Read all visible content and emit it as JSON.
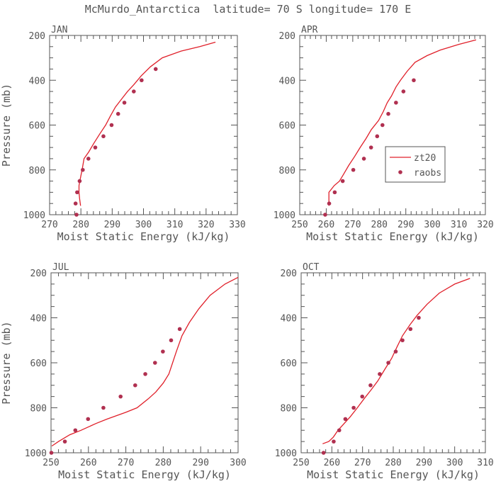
{
  "figure_title": "McMurdo_Antarctica  latitude= 70 S longitude= 170 E",
  "colors": {
    "model_line": "#e0202a",
    "obs_marker": "#b03050",
    "axis": "#555555"
  },
  "chart_data": [
    {
      "type": "line",
      "panel_label": "JAN",
      "xlabel": "Moist Static Energy (kJ/kg)",
      "ylabel": "Pressure (mb)",
      "xlim": [
        270,
        330
      ],
      "ylim": [
        1000,
        200
      ],
      "x_ticks": [
        270,
        280,
        290,
        300,
        310,
        320,
        330
      ],
      "y_ticks": [
        200,
        400,
        600,
        800,
        1000
      ],
      "legend": null,
      "series": [
        {
          "name": "zt20",
          "kind": "line",
          "points": [
            [
              279.9,
              960
            ],
            [
              279.6,
              930
            ],
            [
              279.4,
              900
            ],
            [
              279.4,
              870
            ],
            [
              279.8,
              840
            ],
            [
              280.5,
              790
            ],
            [
              281,
              750
            ],
            [
              282.5,
              720
            ],
            [
              284.2,
              680
            ],
            [
              286,
              640
            ],
            [
              287.9,
              600
            ],
            [
              289.4,
              560
            ],
            [
              291,
              520
            ],
            [
              293.2,
              480
            ],
            [
              294.9,
              450
            ],
            [
              296.9,
              420
            ],
            [
              299.3,
              380
            ],
            [
              302.2,
              340
            ],
            [
              306,
              300
            ],
            [
              312,
              270
            ],
            [
              318,
              250
            ],
            [
              323,
              230
            ]
          ]
        },
        {
          "name": "raobs",
          "kind": "scatter",
          "points": [
            [
              278.6,
              1000
            ],
            [
              278.3,
              950
            ],
            [
              278.8,
              900
            ],
            [
              279.6,
              850
            ],
            [
              280.6,
              800
            ],
            [
              282.4,
              750
            ],
            [
              284.6,
              700
            ],
            [
              287.2,
              650
            ],
            [
              289.8,
              600
            ],
            [
              291.9,
              550
            ],
            [
              293.9,
              500
            ],
            [
              296.9,
              450
            ],
            [
              299.4,
              400
            ],
            [
              303.9,
              350
            ]
          ]
        }
      ]
    },
    {
      "type": "line",
      "panel_label": "APR",
      "xlabel": "Moist Static Energy (kJ/kg)",
      "ylabel": "",
      "xlim": [
        250,
        320
      ],
      "ylim": [
        1000,
        200
      ],
      "x_ticks": [
        250,
        260,
        270,
        280,
        290,
        300,
        310,
        320
      ],
      "y_ticks": [
        200,
        400,
        600,
        800,
        1000
      ],
      "legend": {
        "position": "right",
        "entries": [
          "zt20",
          "raobs"
        ]
      },
      "series": [
        {
          "name": "zt20",
          "kind": "line",
          "points": [
            [
              261,
              960
            ],
            [
              261,
              900
            ],
            [
              263,
              870
            ],
            [
              265,
              850
            ],
            [
              266.5,
              820
            ],
            [
              268.5,
              780
            ],
            [
              270.7,
              740
            ],
            [
              272.8,
              700
            ],
            [
              275,
              660
            ],
            [
              277,
              620
            ],
            [
              279.7,
              580
            ],
            [
              281.5,
              540
            ],
            [
              283,
              500
            ],
            [
              284.6,
              470
            ],
            [
              286.3,
              430
            ],
            [
              288,
              400
            ],
            [
              290.5,
              360
            ],
            [
              293.5,
              320
            ],
            [
              298,
              290
            ],
            [
              303,
              265
            ],
            [
              310,
              240
            ],
            [
              316.5,
              220
            ]
          ]
        },
        {
          "name": "raobs",
          "kind": "scatter",
          "points": [
            [
              259.6,
              1000
            ],
            [
              261.1,
              950
            ],
            [
              263.2,
              900
            ],
            [
              266.2,
              850
            ],
            [
              270.2,
              800
            ],
            [
              274.2,
              750
            ],
            [
              276.9,
              700
            ],
            [
              279.2,
              650
            ],
            [
              281.2,
              600
            ],
            [
              283.4,
              550
            ],
            [
              286.3,
              500
            ],
            [
              289.1,
              450
            ],
            [
              293,
              400
            ]
          ]
        }
      ]
    },
    {
      "type": "line",
      "panel_label": "JUL",
      "xlabel": "Moist Static Energy (kJ/kg)",
      "ylabel": "Pressure (mb)",
      "xlim": [
        250,
        300
      ],
      "ylim": [
        1000,
        200
      ],
      "x_ticks": [
        250,
        260,
        270,
        280,
        290,
        300
      ],
      "y_ticks": [
        200,
        400,
        600,
        800,
        1000
      ],
      "legend": null,
      "series": [
        {
          "name": "zt20",
          "kind": "line",
          "points": [
            [
              250.2,
              970
            ],
            [
              252,
              950
            ],
            [
              255,
              920
            ],
            [
              258,
              900
            ],
            [
              262,
              870
            ],
            [
              265,
              850
            ],
            [
              270,
              820
            ],
            [
              273,
              800
            ],
            [
              276,
              760
            ],
            [
              278,
              730
            ],
            [
              280,
              690
            ],
            [
              281.5,
              650
            ],
            [
              282.5,
              600
            ],
            [
              283.5,
              550
            ],
            [
              285,
              480
            ],
            [
              287,
              420
            ],
            [
              289.5,
              360
            ],
            [
              292.5,
              300
            ],
            [
              296.5,
              250
            ],
            [
              300,
              220
            ]
          ]
        },
        {
          "name": "raobs",
          "kind": "scatter",
          "points": [
            [
              250.1,
              1000
            ],
            [
              253.7,
              950
            ],
            [
              256.5,
              900
            ],
            [
              259.9,
              850
            ],
            [
              264,
              800
            ],
            [
              268.6,
              750
            ],
            [
              272.5,
              700
            ],
            [
              275.2,
              650
            ],
            [
              277.8,
              600
            ],
            [
              279.9,
              550
            ],
            [
              282.1,
              500
            ],
            [
              284.4,
              450
            ]
          ]
        }
      ]
    },
    {
      "type": "line",
      "panel_label": "OCT",
      "xlabel": "Moist Static Energy (kJ/kg)",
      "ylabel": "",
      "xlim": [
        250,
        310
      ],
      "ylim": [
        1000,
        200
      ],
      "x_ticks": [
        250,
        260,
        270,
        280,
        290,
        300,
        310
      ],
      "y_ticks": [
        200,
        400,
        600,
        800,
        1000
      ],
      "legend": null,
      "series": [
        {
          "name": "zt20",
          "kind": "line",
          "points": [
            [
              257,
              960
            ],
            [
              259,
              950
            ],
            [
              260.5,
              930
            ],
            [
              262,
              900
            ],
            [
              264,
              870
            ],
            [
              266,
              840
            ],
            [
              268.3,
              800
            ],
            [
              270.5,
              760
            ],
            [
              272.8,
              720
            ],
            [
              275,
              680
            ],
            [
              277.2,
              630
            ],
            [
              279.5,
              580
            ],
            [
              281.2,
              530
            ],
            [
              283,
              480
            ],
            [
              285.5,
              430
            ],
            [
              287.7,
              390
            ],
            [
              291,
              340
            ],
            [
              295,
              290
            ],
            [
              300,
              250
            ],
            [
              305,
              225
            ]
          ]
        },
        {
          "name": "raobs",
          "kind": "scatter",
          "points": [
            [
              257.3,
              1000
            ],
            [
              260.6,
              950
            ],
            [
              262.4,
              900
            ],
            [
              264.4,
              850
            ],
            [
              267.1,
              800
            ],
            [
              269.9,
              750
            ],
            [
              272.6,
              700
            ],
            [
              275.6,
              650
            ],
            [
              278.4,
              600
            ],
            [
              280.8,
              550
            ],
            [
              283,
              500
            ],
            [
              285.6,
              450
            ],
            [
              288.3,
              400
            ]
          ]
        }
      ]
    }
  ]
}
